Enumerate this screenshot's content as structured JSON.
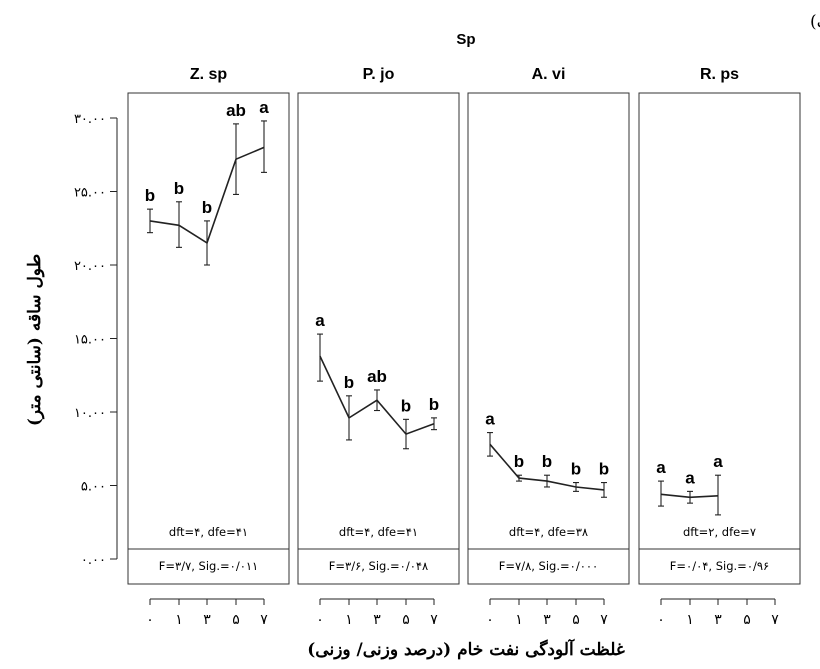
{
  "figure_label": "(الف)",
  "chart_data": {
    "type": "line",
    "facet_title": "Sp",
    "xlabel": "غلظت آلودگی نفت خام (درصد وزنی/ وزنی)",
    "ylabel": "طول ساقه (سانتی متر)",
    "ylim": [
      0,
      30
    ],
    "y_ticks": [
      {
        "value": 0,
        "label": "۰.۰۰"
      },
      {
        "value": 5,
        "label": "۵.۰۰"
      },
      {
        "value": 10,
        "label": "۱۰.۰۰"
      },
      {
        "value": 15,
        "label": "۱۵.۰۰"
      },
      {
        "value": 20,
        "label": "۲۰.۰۰"
      },
      {
        "value": 25,
        "label": "۲۵.۰۰"
      },
      {
        "value": 30,
        "label": "۳۰.۰۰"
      }
    ],
    "x_categories": [
      "۰",
      "۱",
      "۳",
      "۵",
      "۷"
    ],
    "panels": [
      {
        "name": "Z. sp",
        "points": [
          {
            "x": "۰",
            "y": 23.0,
            "lo": 22.2,
            "hi": 23.8,
            "letter": "b"
          },
          {
            "x": "۱",
            "y": 22.7,
            "lo": 21.2,
            "hi": 24.3,
            "letter": "b"
          },
          {
            "x": "۳",
            "y": 21.5,
            "lo": 20.0,
            "hi": 23.0,
            "letter": "b"
          },
          {
            "x": "۵",
            "y": 27.2,
            "lo": 24.8,
            "hi": 29.6,
            "letter": "ab"
          },
          {
            "x": "۷",
            "y": 28.0,
            "lo": 26.3,
            "hi": 29.8,
            "letter": "a"
          }
        ],
        "stat_line1": "dft=۴, dfe=۴۱",
        "stat_line2": "F=۳/۷, Sig.=۰/۰۱۱"
      },
      {
        "name": "P. jo",
        "points": [
          {
            "x": "۰",
            "y": 13.8,
            "lo": 12.1,
            "hi": 15.3,
            "letter": "a"
          },
          {
            "x": "۱",
            "y": 9.6,
            "lo": 8.1,
            "hi": 11.1,
            "letter": "b"
          },
          {
            "x": "۳",
            "y": 10.8,
            "lo": 10.1,
            "hi": 11.5,
            "letter": "ab"
          },
          {
            "x": "۵",
            "y": 8.5,
            "lo": 7.5,
            "hi": 9.5,
            "letter": "b"
          },
          {
            "x": "۷",
            "y": 9.2,
            "lo": 8.8,
            "hi": 9.6,
            "letter": "b"
          }
        ],
        "stat_line1": "dft=۴, dfe=۴۱",
        "stat_line2": "F=۳/۶, Sig.=۰/۰۴۸"
      },
      {
        "name": "A. vi",
        "points": [
          {
            "x": "۰",
            "y": 7.8,
            "lo": 7.0,
            "hi": 8.6,
            "letter": "a"
          },
          {
            "x": "۱",
            "y": 5.5,
            "lo": 5.3,
            "hi": 5.7,
            "letter": "b"
          },
          {
            "x": "۳",
            "y": 5.3,
            "lo": 4.9,
            "hi": 5.7,
            "letter": "b"
          },
          {
            "x": "۵",
            "y": 4.9,
            "lo": 4.6,
            "hi": 5.2,
            "letter": "b"
          },
          {
            "x": "۷",
            "y": 4.7,
            "lo": 4.2,
            "hi": 5.2,
            "letter": "b"
          }
        ],
        "stat_line1": "dft=۴, dfe=۳۸",
        "stat_line2": "F=۷/۸, Sig.=۰/۰۰۰"
      },
      {
        "name": "R. ps",
        "points": [
          {
            "x": "۰",
            "y": 4.4,
            "lo": 3.6,
            "hi": 5.3,
            "letter": "a"
          },
          {
            "x": "۱",
            "y": 4.2,
            "lo": 3.8,
            "hi": 4.6,
            "letter": "a"
          },
          {
            "x": "۳",
            "y": 4.3,
            "lo": 3.0,
            "hi": 5.7,
            "letter": "a"
          }
        ],
        "stat_line1": "dft=۲, dfe=۷",
        "stat_line2": "F=۰/۰۴, Sig.=۰/۹۶"
      }
    ]
  }
}
